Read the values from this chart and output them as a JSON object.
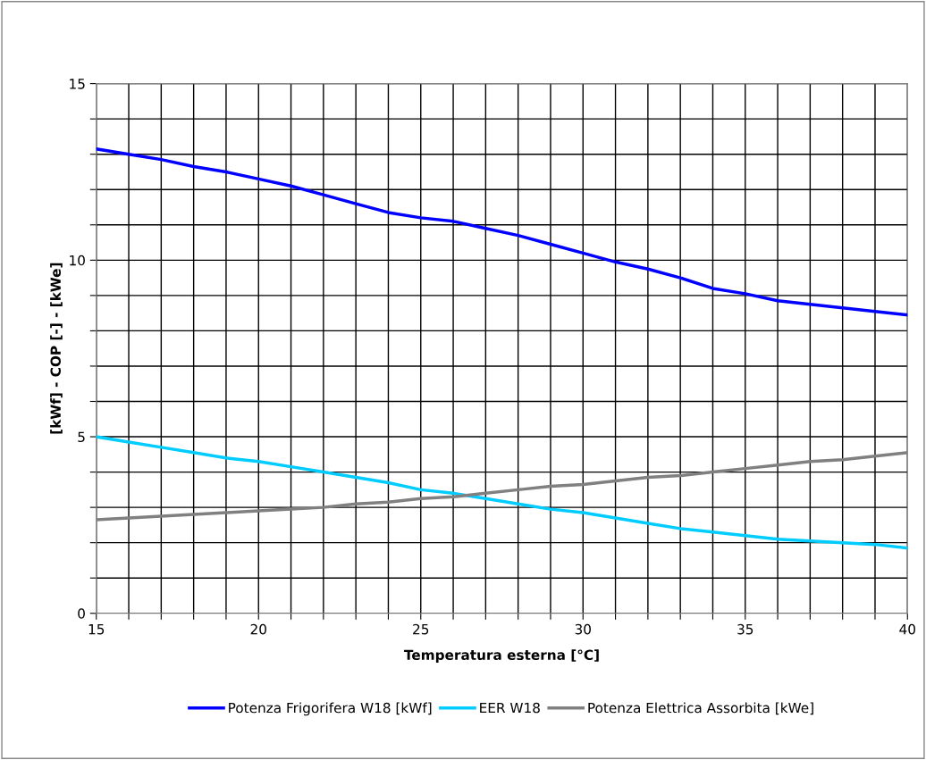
{
  "chart_data": {
    "type": "line",
    "xlabel": "Temperatura esterna [°C]",
    "ylabel": "[kWf] - COP [-] - [kWe]",
    "x": [
      15,
      16,
      17,
      18,
      19,
      20,
      21,
      22,
      23,
      24,
      25,
      26,
      27,
      28,
      29,
      30,
      31,
      32,
      33,
      34,
      35,
      36,
      37,
      38,
      39,
      40
    ],
    "series": [
      {
        "name": "Potenza Frigorifera W18 [kWf]",
        "color": "#0000ff",
        "values": [
          13.15,
          13.0,
          12.85,
          12.65,
          12.5,
          12.3,
          12.1,
          11.85,
          11.6,
          11.35,
          11.2,
          11.1,
          10.9,
          10.7,
          10.45,
          10.2,
          9.95,
          9.75,
          9.5,
          9.2,
          9.05,
          8.85,
          8.75,
          8.65,
          8.55,
          8.45
        ]
      },
      {
        "name": "EER W18",
        "color": "#00ccff",
        "values": [
          5.0,
          4.85,
          4.7,
          4.55,
          4.4,
          4.3,
          4.15,
          4.0,
          3.85,
          3.7,
          3.5,
          3.4,
          3.25,
          3.1,
          2.95,
          2.85,
          2.7,
          2.55,
          2.4,
          2.3,
          2.2,
          2.1,
          2.05,
          2.0,
          1.95,
          1.85
        ]
      },
      {
        "name": "Potenza Elettrica Assorbita [kWe]",
        "color": "#808080",
        "values": [
          2.65,
          2.7,
          2.75,
          2.8,
          2.85,
          2.9,
          2.95,
          3.0,
          3.1,
          3.15,
          3.25,
          3.3,
          3.4,
          3.5,
          3.6,
          3.65,
          3.75,
          3.85,
          3.9,
          4.0,
          4.1,
          4.2,
          4.3,
          4.35,
          4.45,
          4.55
        ]
      }
    ],
    "xlim": [
      15,
      40
    ],
    "xticks": [
      15,
      {
        "value": 16,
        "label": null
      },
      {
        "value": 17,
        "label": null
      },
      {
        "value": 18,
        "label": null
      },
      {
        "value": 19,
        "label": null
      },
      20,
      {
        "value": 21,
        "label": null
      },
      {
        "value": 22,
        "label": null
      },
      {
        "value": 23,
        "label": null
      },
      {
        "value": 24,
        "label": null
      },
      25,
      {
        "value": 26,
        "label": null
      },
      {
        "value": 27,
        "label": null
      },
      {
        "value": 28,
        "label": null
      },
      {
        "value": 29,
        "label": null
      },
      30,
      {
        "value": 31,
        "label": null
      },
      {
        "value": 32,
        "label": null
      },
      {
        "value": 33,
        "label": null
      },
      {
        "value": 34,
        "label": null
      },
      35,
      {
        "value": 36,
        "label": null
      },
      {
        "value": 37,
        "label": null
      },
      {
        "value": 38,
        "label": null
      },
      {
        "value": 39,
        "label": null
      },
      40
    ],
    "ylim": [
      0,
      15
    ],
    "yticks": [
      0,
      {
        "value": 1,
        "label": null
      },
      {
        "value": 2,
        "label": null
      },
      {
        "value": 3,
        "label": null
      },
      {
        "value": 4,
        "label": null
      },
      5,
      {
        "value": 6,
        "label": null
      },
      {
        "value": 7,
        "label": null
      },
      {
        "value": 8,
        "label": null
      },
      {
        "value": 9,
        "label": null
      },
      10,
      {
        "value": 11,
        "label": null
      },
      {
        "value": 12,
        "label": null
      },
      {
        "value": 13,
        "label": null
      },
      {
        "value": 14,
        "label": null
      },
      15
    ],
    "grid": true,
    "legend": "bottom",
    "marker": "none",
    "line_style": "solid"
  }
}
